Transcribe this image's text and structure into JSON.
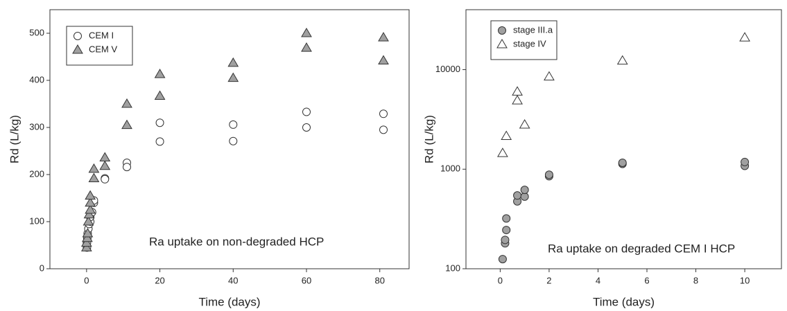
{
  "chart_data": [
    {
      "type": "scatter",
      "xlabel": "Time (days)",
      "ylabel": "Rd (L/kg)",
      "annotation": "Ra uptake on non-degraded HCP",
      "xlim": [
        -10,
        88
      ],
      "xticks": [
        0,
        20,
        40,
        60,
        80
      ],
      "ylim": [
        0,
        550
      ],
      "yticks": [
        0,
        100,
        200,
        300,
        400,
        500
      ],
      "log_y": false,
      "legend": "upper left",
      "series": [
        {
          "name": "CEM I",
          "marker": "circle",
          "color": "#ffffff",
          "x": [
            0.1,
            0.1,
            0.2,
            0.3,
            0.5,
            0.7,
            1,
            1,
            1.5,
            2,
            2,
            5,
            5,
            11,
            11,
            20,
            20,
            40,
            40,
            60,
            60,
            81,
            81
          ],
          "values": [
            45,
            55,
            65,
            75,
            85,
            95,
            100,
            110,
            120,
            140,
            145,
            192,
            190,
            225,
            216,
            310,
            270,
            306,
            271,
            333,
            300,
            329,
            295
          ]
        },
        {
          "name": "CEM V",
          "marker": "triangle",
          "color": "#a0a0a0",
          "x": [
            0,
            0,
            0.2,
            0.3,
            0.5,
            0.7,
            1,
            1,
            1,
            2,
            2,
            5,
            5,
            11,
            11,
            20,
            20,
            40,
            40,
            60,
            60,
            81,
            81
          ],
          "values": [
            45,
            55,
            65,
            75,
            100,
            115,
            125,
            140,
            155,
            192,
            212,
            218,
            236,
            305,
            350,
            367,
            413,
            405,
            437,
            469,
            500,
            442,
            491
          ]
        }
      ]
    },
    {
      "type": "scatter",
      "xlabel": "Time (days)",
      "ylabel": "Rd (L/kg)",
      "annotation": "Ra uptake on degraded CEM I HCP",
      "xlim": [
        -1.4,
        11.5
      ],
      "xticks": [
        0,
        2,
        4,
        6,
        8,
        10
      ],
      "ylim": [
        100,
        40000
      ],
      "yticks": [
        100,
        1000,
        10000
      ],
      "log_y": true,
      "legend": "upper left",
      "series": [
        {
          "name": "stage III.a",
          "marker": "circle",
          "color": "#a0a0a0",
          "x": [
            0.1,
            0.2,
            0.2,
            0.25,
            0.25,
            0.7,
            0.7,
            1,
            1,
            2,
            2,
            5,
            5,
            10,
            10
          ],
          "values": [
            125,
            180,
            195,
            245,
            320,
            475,
            545,
            530,
            620,
            850,
            880,
            1130,
            1160,
            1080,
            1180
          ]
        },
        {
          "name": "stage IV",
          "marker": "triangle",
          "color": "#ffffff",
          "x": [
            0.1,
            0.25,
            0.7,
            0.7,
            1,
            2,
            5,
            10
          ],
          "values": [
            1450,
            2150,
            6000,
            4900,
            2800,
            8500,
            12300,
            21000
          ]
        }
      ]
    }
  ]
}
